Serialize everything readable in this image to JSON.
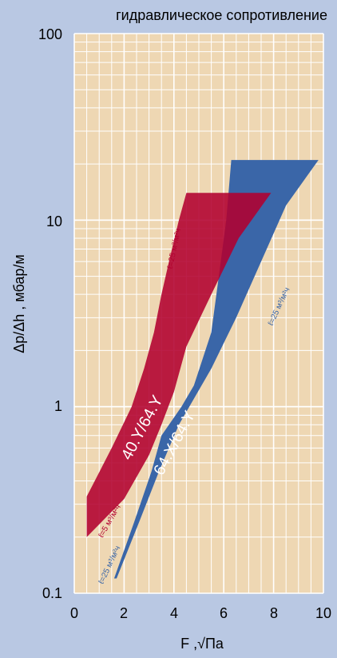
{
  "chart_data": {
    "type": "area",
    "title": "гидравлическое сопротивление",
    "xlabel": "F ,√Па",
    "ylabel": "Δp/Δh ,  мбар/м",
    "xlim": [
      0,
      10
    ],
    "ylim": [
      0.1,
      100
    ],
    "y_scale": "log",
    "x_ticks": [
      "0",
      "2",
      "4",
      "6",
      "8",
      "10"
    ],
    "y_ticks": [
      "0.1",
      "1",
      "10",
      "100"
    ],
    "grid": true,
    "colors": {
      "background": "#b9c8e3",
      "plot": "#eed7b3",
      "grid": "#ffffff",
      "red_band": "#b2002f",
      "blue_band": "#3a66a8",
      "overlap": "#8d4757"
    },
    "series": [
      {
        "name": "40.Y/64.Y",
        "lower": {
          "x": [
            0.5,
            2,
            3,
            3.5,
            4,
            4.5,
            5.5,
            6.6,
            7.9
          ],
          "y": [
            0.2,
            0.32,
            0.55,
            0.8,
            1.2,
            2.1,
            4,
            8,
            14
          ]
        },
        "upper": {
          "x": [
            0.5,
            1.5,
            2.3,
            2.8,
            3.2,
            3.5,
            3.8,
            4.2,
            4.5
          ],
          "y": [
            0.33,
            0.6,
            1,
            1.6,
            2.5,
            4,
            6,
            10,
            14
          ]
        }
      },
      {
        "name": "64.X/64.Y",
        "lower": {
          "x": [
            1.7,
            2.6,
            3.4,
            4.2,
            5.5,
            6.5,
            7.5,
            8.5,
            9.8
          ],
          "y": [
            0.12,
            0.24,
            0.45,
            0.8,
            1.6,
            3,
            6,
            12,
            21
          ]
        },
        "upper": {
          "x": [
            1.6,
            2.4,
            3.1,
            3.5,
            4.3,
            4.8,
            5.5,
            5.8,
            6.1,
            6.3
          ],
          "y": [
            0.12,
            0.24,
            0.45,
            0.7,
            1,
            1.3,
            2.5,
            5,
            10,
            21
          ]
        }
      }
    ],
    "annotations": [
      {
        "text": "ℓ=25 м³/м²ч",
        "x": 4.1,
        "y": 7,
        "angle": -78,
        "color": "#b2002f"
      },
      {
        "text": "ℓ=5 м³/м²ч",
        "x": 1.5,
        "y": 0.24,
        "angle": -60,
        "color": "#b2002f"
      },
      {
        "text": "ℓ=25 м³/м²ч",
        "x": 1.5,
        "y": 0.14,
        "angle": -65,
        "color": "#3a66a8"
      },
      {
        "text": "ℓ=25 м³/м²ч",
        "x": 8.3,
        "y": 3.4,
        "angle": -65,
        "color": "#3a66a8"
      }
    ]
  }
}
